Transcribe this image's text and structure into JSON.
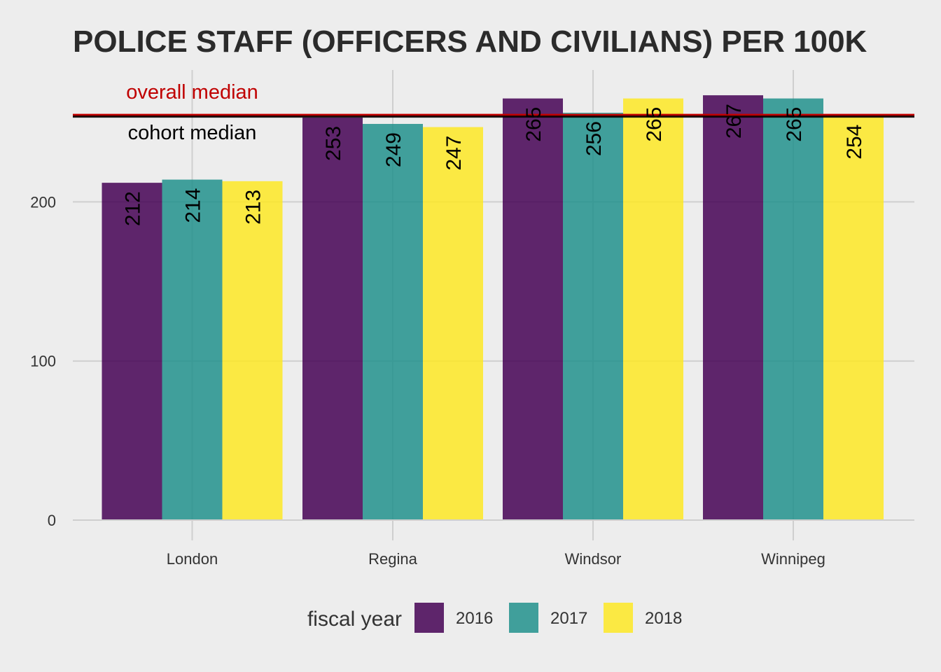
{
  "chart_data": {
    "type": "bar",
    "title": "POLICE STAFF (OFFICERS AND CIVILIANS) PER 100K",
    "categories": [
      "London",
      "Regina",
      "Windsor",
      "Winnipeg"
    ],
    "series": [
      {
        "name": "2016",
        "color": "#440154",
        "values": [
          212,
          253,
          265,
          267
        ],
        "labels": [
          "212",
          "253",
          "265",
          "267"
        ]
      },
      {
        "name": "2017",
        "color": "#21908c",
        "values": [
          214,
          249,
          256,
          265
        ],
        "labels": [
          "214",
          "249",
          "256",
          "265"
        ]
      },
      {
        "name": "2018",
        "color": "#fde725",
        "values": [
          213,
          247,
          265,
          254
        ],
        "labels": [
          "213",
          "247",
          "265",
          "254"
        ]
      }
    ],
    "ylim": [
      0,
      282
    ],
    "yticks": [
      0,
      100,
      200
    ],
    "ytick_labels": [
      "0",
      "100",
      "200"
    ],
    "grid": true,
    "legend": {
      "title": "fiscal year",
      "position": "bottom"
    },
    "overall_median": {
      "value": 254,
      "label": "overall median",
      "color": "#c00000"
    },
    "cohort_median": {
      "value": 254,
      "label": "cohort median",
      "color": "#000000"
    }
  }
}
